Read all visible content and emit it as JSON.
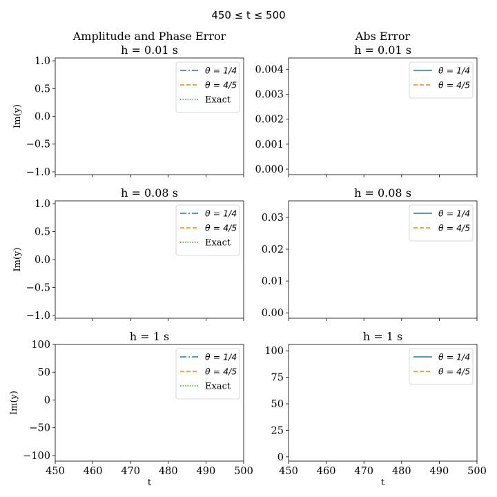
{
  "figure": {
    "suptitle": "450 ≤ t ≤ 500",
    "col_titles": [
      "Amplitude and Phase Error",
      "Abs Error"
    ]
  },
  "legend_labels": {
    "theta_14": "θ = 1/4",
    "theta_45": "θ = 4/5",
    "exact": "Exact"
  },
  "colors": {
    "blue": "#1f77b4",
    "orange": "#ff7f0e",
    "green": "#2ca02c"
  },
  "chart_data": [
    {
      "type": "line",
      "title": "h = 0.01 s",
      "ylabel": "Im(y)",
      "xlabel": "",
      "xlim": [
        450,
        500
      ],
      "ylim": [
        -1.05,
        1.05
      ],
      "yticks": [
        "1.0",
        "0.5",
        "0.0",
        "−0.5",
        "−1.0"
      ],
      "ytick_values": [
        1.0,
        0.5,
        0.0,
        -0.5,
        -1.0
      ],
      "legend": {
        "position": "upper right",
        "entries": [
          "θ = 1/4",
          "θ = 4/5",
          "Exact"
        ]
      },
      "series": [
        {
          "name": "θ = 1/4",
          "style": "dashdot",
          "color": "#1f77b4",
          "values": []
        },
        {
          "name": "θ = 4/5",
          "style": "dashed",
          "color": "#ff7f0e",
          "values": []
        },
        {
          "name": "Exact",
          "style": "dotted",
          "color": "#2ca02c",
          "values": []
        }
      ]
    },
    {
      "type": "line",
      "title": "Abs Error\nh = 0.01 s",
      "ylabel": "",
      "xlabel": "",
      "xlim": [
        450,
        500
      ],
      "ylim": [
        -0.00022,
        0.00445
      ],
      "yticks": [
        "0.004",
        "0.003",
        "0.002",
        "0.001",
        "0.000"
      ],
      "ytick_values": [
        0.004,
        0.003,
        0.002,
        0.001,
        0.0
      ],
      "legend": {
        "position": "upper right",
        "entries": [
          "θ = 1/4",
          "θ = 4/5"
        ]
      },
      "series": [
        {
          "name": "θ = 1/4",
          "style": "solid",
          "color": "#1f77b4",
          "values": []
        },
        {
          "name": "θ = 4/5",
          "style": "dashed",
          "color": "#ff7f0e",
          "values": []
        }
      ]
    },
    {
      "type": "line",
      "title": "h = 0.08 s",
      "ylabel": "Im(y)",
      "xlabel": "",
      "xlim": [
        450,
        500
      ],
      "ylim": [
        -1.05,
        1.05
      ],
      "yticks": [
        "1.0",
        "0.5",
        "0.0",
        "−0.5",
        "−1.0"
      ],
      "ytick_values": [
        1.0,
        0.5,
        0.0,
        -0.5,
        -1.0
      ],
      "legend": {
        "position": "upper right",
        "entries": [
          "θ = 1/4",
          "θ = 4/5",
          "Exact"
        ]
      },
      "series": [
        {
          "name": "θ = 1/4",
          "style": "dashdot",
          "color": "#1f77b4",
          "values": []
        },
        {
          "name": "θ = 4/5",
          "style": "dashed",
          "color": "#ff7f0e",
          "values": []
        },
        {
          "name": "Exact",
          "style": "dotted",
          "color": "#2ca02c",
          "values": []
        }
      ]
    },
    {
      "type": "line",
      "title": "h = 0.08 s",
      "ylabel": "",
      "xlabel": "",
      "xlim": [
        450,
        500
      ],
      "ylim": [
        -0.0017,
        0.0352
      ],
      "yticks": [
        "0.03",
        "0.02",
        "0.01",
        "0.00"
      ],
      "ytick_values": [
        0.03,
        0.02,
        0.01,
        0.0
      ],
      "legend": {
        "position": "upper right",
        "entries": [
          "θ = 1/4",
          "θ = 4/5"
        ]
      },
      "series": [
        {
          "name": "θ = 1/4",
          "style": "solid",
          "color": "#1f77b4",
          "values": []
        },
        {
          "name": "θ = 4/5",
          "style": "dashed",
          "color": "#ff7f0e",
          "values": []
        }
      ]
    },
    {
      "type": "line",
      "title": "h = 1 s",
      "ylabel": "Im(y)",
      "xlabel": "t",
      "xlim": [
        450,
        500
      ],
      "ylim": [
        -110,
        100
      ],
      "yticks": [
        "100",
        "50",
        "0",
        "−50",
        "−100"
      ],
      "ytick_values": [
        100,
        50,
        0,
        -50,
        -100
      ],
      "xticks": [
        "450",
        "460",
        "470",
        "480",
        "490",
        "500"
      ],
      "xtick_values": [
        450,
        460,
        470,
        480,
        490,
        500
      ],
      "legend": {
        "position": "upper right",
        "entries": [
          "θ = 1/4",
          "θ = 4/5",
          "Exact"
        ]
      },
      "series": [
        {
          "name": "θ = 1/4",
          "style": "dashdot",
          "color": "#1f77b4",
          "values": []
        },
        {
          "name": "θ = 4/5",
          "style": "dashed",
          "color": "#ff7f0e",
          "values": []
        },
        {
          "name": "Exact",
          "style": "dotted",
          "color": "#2ca02c",
          "values": []
        }
      ]
    },
    {
      "type": "line",
      "title": "h = 1 s",
      "ylabel": "",
      "xlabel": "t",
      "xlim": [
        450,
        500
      ],
      "ylim": [
        -4,
        106
      ],
      "yticks": [
        "100",
        "75",
        "50",
        "25",
        "0"
      ],
      "ytick_values": [
        100,
        75,
        50,
        25,
        0
      ],
      "xticks": [
        "450",
        "460",
        "470",
        "480",
        "490",
        "500"
      ],
      "xtick_values": [
        450,
        460,
        470,
        480,
        490,
        500
      ],
      "legend": {
        "position": "upper right",
        "entries": [
          "θ = 1/4",
          "θ = 4/5"
        ]
      },
      "series": [
        {
          "name": "θ = 1/4",
          "style": "solid",
          "color": "#1f77b4",
          "values": []
        },
        {
          "name": "θ = 4/5",
          "style": "dashed",
          "color": "#ff7f0e",
          "values": []
        }
      ]
    }
  ]
}
